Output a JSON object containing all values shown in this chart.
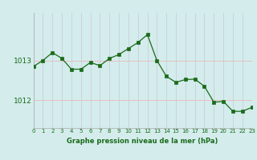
{
  "hours": [
    0,
    1,
    2,
    3,
    4,
    5,
    6,
    7,
    8,
    9,
    10,
    11,
    12,
    13,
    14,
    15,
    16,
    17,
    18,
    19,
    20,
    21,
    22,
    23
  ],
  "pressure": [
    1012.85,
    1013.0,
    1013.2,
    1013.05,
    1012.78,
    1012.78,
    1012.95,
    1012.87,
    1013.05,
    1013.15,
    1013.3,
    1013.45,
    1013.65,
    1013.0,
    1012.6,
    1012.45,
    1012.52,
    1012.53,
    1012.35,
    1011.95,
    1011.97,
    1011.72,
    1011.72,
    1011.82
  ],
  "line_color": "#1a6b1a",
  "marker_color": "#1a6b1a",
  "bg_color": "#d4ecec",
  "vgrid_color": "#c8c8d8",
  "hgrid_color": "#e8b8b8",
  "axis_label_color": "#1a6b1a",
  "tick_label_color": "#1a6b1a",
  "xlabel": "Graphe pression niveau de la mer (hPa)",
  "yticks": [
    1012,
    1013
  ],
  "ylim": [
    1011.3,
    1014.2
  ],
  "xlim": [
    0,
    23
  ]
}
